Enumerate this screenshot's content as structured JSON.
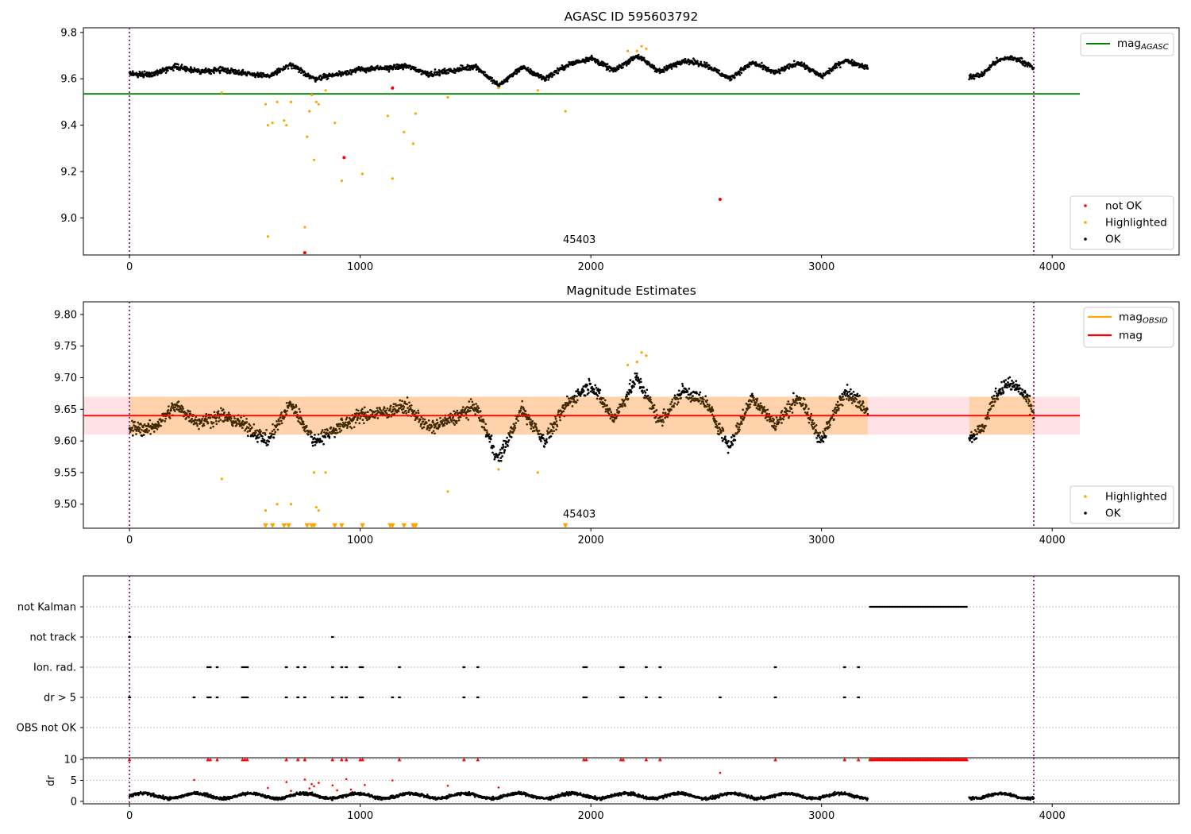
{
  "chart_data": [
    {
      "type": "scatter",
      "title": "AGASC ID 595603792",
      "xlim": [
        -200,
        4550
      ],
      "ylim": [
        8.84,
        9.82
      ],
      "yticks": [
        "9.8",
        "9.6",
        "9.4",
        "9.2",
        "9.0"
      ],
      "xticks": [
        "0",
        "1000",
        "2000",
        "3000",
        "4000"
      ],
      "vlines": [
        0,
        3920
      ],
      "hline": {
        "name": "mag_AGASC",
        "value": 9.535,
        "x_range": [
          -200,
          4120
        ],
        "color": "#008000"
      },
      "annotation": {
        "text": "45403",
        "x": 1950,
        "y": 8.86
      },
      "legend_top": [
        {
          "label": "mag",
          "sub": "AGASC",
          "color": "#008000"
        }
      ],
      "legend_bottom": [
        {
          "label": "not OK",
          "color": "#ff0000"
        },
        {
          "label": "Highlighted",
          "color": "#ffa500"
        },
        {
          "label": "OK",
          "color": "#000000"
        }
      ],
      "series": [
        {
          "name": "OK",
          "color": "#000000",
          "segments": [
            {
              "x": [
                0,
                100,
                200,
                300,
                400,
                500,
                600,
                700,
                800,
                900,
                1000,
                1100,
                1200,
                1300,
                1400,
                1500,
                1600,
                1700,
                1800,
                1900,
                2000,
                2100,
                2200,
                2300,
                2400,
                2500,
                2600,
                2700,
                2800,
                2900,
                3000,
                3100,
                3200
              ],
              "y": [
                9.62,
                9.62,
                9.655,
                9.63,
                9.64,
                9.625,
                9.61,
                9.66,
                9.6,
                9.62,
                9.64,
                9.645,
                9.655,
                9.62,
                9.635,
                9.655,
                9.57,
                9.65,
                9.6,
                9.66,
                9.69,
                9.635,
                9.7,
                9.63,
                9.68,
                9.66,
                9.6,
                9.67,
                9.625,
                9.67,
                9.61,
                9.68,
                9.65
              ]
            },
            {
              "x": [
                3640,
                3700,
                3750,
                3800,
                3850,
                3900,
                3920
              ],
              "y": [
                9.605,
                9.62,
                9.67,
                9.69,
                9.685,
                9.66,
                9.64
              ]
            }
          ]
        },
        {
          "name": "Highlighted",
          "color": "#ffa500",
          "points": [
            [
              400,
              9.54
            ],
            [
              590,
              9.49
            ],
            [
              600,
              9.4
            ],
            [
              600,
              8.92
            ],
            [
              620,
              9.41
            ],
            [
              640,
              9.5
            ],
            [
              670,
              9.42
            ],
            [
              680,
              9.4
            ],
            [
              700,
              9.5
            ],
            [
              760,
              8.96
            ],
            [
              770,
              9.35
            ],
            [
              780,
              9.46
            ],
            [
              790,
              9.53
            ],
            [
              800,
              9.25
            ],
            [
              810,
              9.5
            ],
            [
              820,
              9.49
            ],
            [
              850,
              9.55
            ],
            [
              890,
              9.41
            ],
            [
              920,
              9.16
            ],
            [
              1010,
              9.19
            ],
            [
              1120,
              9.44
            ],
            [
              1140,
              9.17
            ],
            [
              1190,
              9.37
            ],
            [
              1230,
              9.32
            ],
            [
              1240,
              9.45
            ],
            [
              1380,
              9.52
            ],
            [
              1600,
              9.56
            ],
            [
              1770,
              9.55
            ],
            [
              1890,
              9.46
            ],
            [
              2160,
              9.72
            ],
            [
              2200,
              9.72
            ],
            [
              2220,
              9.74
            ],
            [
              2240,
              9.73
            ]
          ]
        },
        {
          "name": "not OK",
          "color": "#ff0000",
          "points": [
            [
              930,
              9.26
            ],
            [
              1140,
              9.56
            ],
            [
              2560,
              9.08
            ],
            [
              760,
              8.85
            ]
          ]
        }
      ]
    },
    {
      "type": "scatter",
      "title": "Magnitude Estimates",
      "xlim": [
        -200,
        4550
      ],
      "ylim": [
        9.462,
        9.82
      ],
      "yticks": [
        "9.80",
        "9.75",
        "9.70",
        "9.65",
        "9.60",
        "9.55",
        "9.50"
      ],
      "xticks": [
        "0",
        "1000",
        "2000",
        "3000",
        "4000"
      ],
      "vlines": [
        0,
        3920
      ],
      "band": {
        "y_range": [
          9.61,
          9.67
        ],
        "x_range": [
          -200,
          4120
        ]
      },
      "hline": {
        "name": "mag",
        "value": 9.64,
        "x_range": [
          -200,
          4120
        ],
        "color": "#ff0000"
      },
      "annotation": {
        "text": "45403",
        "x": 1950,
        "y": 9.475
      },
      "legend_top": [
        {
          "label": "mag",
          "sub": "OBSID",
          "color": "#ffa500"
        },
        {
          "label": "mag",
          "sub": "",
          "color": "#ff0000"
        }
      ],
      "legend_bottom": [
        {
          "label": "Highlighted",
          "color": "#ffa500"
        },
        {
          "label": "OK",
          "color": "#000000"
        }
      ],
      "series": [
        {
          "name": "OK",
          "color": "#000000",
          "segments": [
            {
              "x": [
                0,
                100,
                200,
                300,
                400,
                500,
                600,
                700,
                800,
                900,
                1000,
                1100,
                1200,
                1300,
                1400,
                1500,
                1600,
                1700,
                1800,
                1900,
                2000,
                2100,
                2200,
                2300,
                2400,
                2500,
                2600,
                2700,
                2800,
                2900,
                3000,
                3100,
                3200
              ],
              "y": [
                9.62,
                9.62,
                9.655,
                9.63,
                9.64,
                9.625,
                9.6,
                9.66,
                9.6,
                9.62,
                9.64,
                9.645,
                9.655,
                9.62,
                9.635,
                9.655,
                9.57,
                9.65,
                9.6,
                9.66,
                9.69,
                9.635,
                9.7,
                9.63,
                9.68,
                9.66,
                9.59,
                9.67,
                9.625,
                9.67,
                9.6,
                9.68,
                9.65
              ]
            },
            {
              "x": [
                3640,
                3700,
                3750,
                3800,
                3850,
                3900,
                3920
              ],
              "y": [
                9.605,
                9.62,
                9.67,
                9.69,
                9.685,
                9.66,
                9.64
              ]
            }
          ]
        },
        {
          "name": "Highlighted",
          "color": "#ffa500",
          "points": [
            [
              400,
              9.54
            ],
            [
              590,
              9.49
            ],
            [
              640,
              9.5
            ],
            [
              700,
              9.5
            ],
            [
              800,
              9.55
            ],
            [
              810,
              9.495
            ],
            [
              820,
              9.49
            ],
            [
              850,
              9.55
            ],
            [
              1380,
              9.52
            ],
            [
              1600,
              9.555
            ],
            [
              1770,
              9.55
            ],
            [
              2160,
              9.72
            ],
            [
              2200,
              9.725
            ],
            [
              2220,
              9.74
            ],
            [
              2240,
              9.735
            ]
          ]
        },
        {
          "name": "Highlighted below range",
          "color": "#ffa500",
          "marker": "triangle-down",
          "x": [
            590,
            620,
            670,
            690,
            770,
            790,
            800,
            890,
            920,
            1010,
            1130,
            1140,
            1190,
            1230,
            1240,
            1890
          ]
        }
      ]
    },
    {
      "type": "scatter",
      "categories": [
        "not Kalman",
        "not track",
        "Ion. rad.",
        "dr > 5",
        "OBS not OK"
      ],
      "xlim": [
        -200,
        4550
      ],
      "vlines": [
        0,
        3920
      ],
      "flags": [
        {
          "category": "not Kalman",
          "x_range": [
            3210,
            3630
          ]
        },
        {
          "category": "not track",
          "x": [
            0,
            880
          ]
        },
        {
          "category": "Ion. rad.",
          "x": [
            340,
            350,
            380,
            490,
            500,
            510,
            680,
            730,
            760,
            880,
            920,
            940,
            1000,
            1010,
            1170,
            1450,
            1510,
            1970,
            1980,
            2130,
            2140,
            2240,
            2300,
            2800,
            3100,
            3160
          ]
        },
        {
          "category": "dr > 5",
          "x": [
            0,
            280,
            340,
            350,
            380,
            490,
            500,
            510,
            680,
            730,
            760,
            880,
            920,
            940,
            1000,
            1010,
            1140,
            1170,
            1450,
            1510,
            1970,
            1980,
            2130,
            2140,
            2240,
            2300,
            2560,
            2800,
            3100,
            3160
          ]
        },
        {
          "category": "OBS not OK",
          "x": []
        }
      ]
    },
    {
      "type": "scatter",
      "ylabel": "dr",
      "xlim": [
        -200,
        4550
      ],
      "ylim": [
        -0.6,
        10.4
      ],
      "yticks": [
        "10",
        "5",
        "0"
      ],
      "xticks": [
        "0",
        "1000",
        "2000",
        "3000",
        "4000"
      ],
      "vlines": [
        0,
        3920
      ],
      "series": [
        {
          "name": "dr",
          "color": "#000000",
          "segments": [
            [
              0,
              3200
            ],
            [
              3640,
              3920
            ]
          ],
          "typical": 1.3
        },
        {
          "name": "dr capped",
          "color": "#ff0000",
          "marker": "triangle",
          "y": 10,
          "x": [
            0,
            340,
            350,
            380,
            490,
            500,
            510,
            680,
            730,
            760,
            880,
            920,
            940,
            1000,
            1010,
            1170,
            1450,
            1510,
            1970,
            1980,
            2130,
            2140,
            2240,
            2300,
            2800,
            3100,
            3160
          ],
          "x_range": [
            3210,
            3630
          ]
        },
        {
          "name": "dr high",
          "color": "#ff0000",
          "points": [
            [
              280,
              5.1
            ],
            [
              600,
              3.2
            ],
            [
              680,
              4.6
            ],
            [
              700,
              2.5
            ],
            [
              760,
              5.2
            ],
            [
              780,
              3.1
            ],
            [
              790,
              4.1
            ],
            [
              800,
              3.6
            ],
            [
              820,
              4.4
            ],
            [
              880,
              3.8
            ],
            [
              900,
              2.6
            ],
            [
              940,
              5.3
            ],
            [
              960,
              2.8
            ],
            [
              1020,
              3.9
            ],
            [
              1140,
              5.0
            ],
            [
              1380,
              3.7
            ],
            [
              1600,
              3.3
            ],
            [
              2560,
              6.8
            ]
          ]
        }
      ]
    }
  ]
}
